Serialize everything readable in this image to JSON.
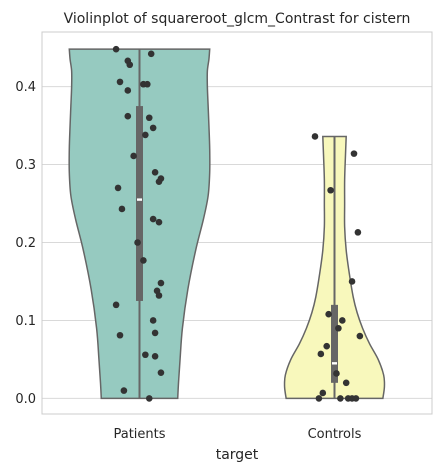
{
  "chart_data": {
    "type": "violin",
    "title": "Violinplot of squareroot_glcm_Contrast for cistern",
    "xlabel": "target",
    "ylabel": "",
    "categories": [
      "Patients",
      "Controls"
    ],
    "ylim": [
      -0.02,
      0.47
    ],
    "yticks": [
      0.0,
      0.1,
      0.2,
      0.3,
      0.4
    ],
    "ytick_labels": [
      "0.0",
      "0.1",
      "0.2",
      "0.3",
      "0.4"
    ],
    "grid": "horizontal",
    "colors": {
      "Patients": "#96cac0",
      "Controls": "#f8f8bc",
      "edge": "#666666",
      "box": "#666666",
      "points": "#333333"
    },
    "series": [
      {
        "category": "Patients",
        "min": 0.0,
        "q1": 0.125,
        "median": 0.255,
        "q3": 0.375,
        "max": 0.448,
        "density_profile": [
          [
            0.0,
            0.49
          ],
          [
            0.02,
            0.5
          ],
          [
            0.05,
            0.52
          ],
          [
            0.09,
            0.55
          ],
          [
            0.14,
            0.62
          ],
          [
            0.19,
            0.72
          ],
          [
            0.23,
            0.82
          ],
          [
            0.26,
            0.88
          ],
          [
            0.29,
            0.9
          ],
          [
            0.32,
            0.9
          ],
          [
            0.35,
            0.89
          ],
          [
            0.375,
            0.88
          ],
          [
            0.4,
            0.87
          ],
          [
            0.42,
            0.87
          ],
          [
            0.435,
            0.89
          ],
          [
            0.448,
            0.9
          ]
        ],
        "points": [
          0.448,
          0.442,
          0.433,
          0.428,
          0.406,
          0.403,
          0.403,
          0.395,
          0.362,
          0.36,
          0.347,
          0.338,
          0.311,
          0.29,
          0.282,
          0.278,
          0.27,
          0.243,
          0.23,
          0.226,
          0.2,
          0.177,
          0.148,
          0.138,
          0.132,
          0.12,
          0.1,
          0.084,
          0.081,
          0.056,
          0.054,
          0.033,
          0.01,
          0.0
        ],
        "jitter": [
          -0.12,
          0.06,
          -0.06,
          -0.05,
          -0.1,
          0.02,
          0.04,
          -0.06,
          -0.06,
          0.05,
          0.07,
          0.03,
          -0.03,
          0.08,
          0.11,
          0.1,
          -0.11,
          -0.09,
          0.07,
          0.1,
          -0.01,
          0.02,
          0.11,
          0.09,
          0.1,
          -0.12,
          0.07,
          0.08,
          -0.1,
          0.03,
          0.08,
          0.11,
          -0.08,
          0.05
        ]
      },
      {
        "category": "Controls",
        "min": 0.0,
        "q1": 0.02,
        "median": 0.045,
        "q3": 0.12,
        "max": 0.336,
        "density_profile": [
          [
            0.0,
            0.62
          ],
          [
            0.015,
            0.64
          ],
          [
            0.03,
            0.63
          ],
          [
            0.05,
            0.56
          ],
          [
            0.07,
            0.45
          ],
          [
            0.09,
            0.36
          ],
          [
            0.11,
            0.29
          ],
          [
            0.13,
            0.24
          ],
          [
            0.16,
            0.19
          ],
          [
            0.19,
            0.15
          ],
          [
            0.22,
            0.13
          ],
          [
            0.25,
            0.13
          ],
          [
            0.28,
            0.13
          ],
          [
            0.31,
            0.14
          ],
          [
            0.336,
            0.15
          ]
        ],
        "points": [
          0.336,
          0.314,
          0.267,
          0.213,
          0.15,
          0.108,
          0.1,
          0.09,
          0.08,
          0.067,
          0.057,
          0.032,
          0.02,
          0.007,
          0.0,
          0.0,
          0.0,
          0.0,
          0.0
        ],
        "jitter": [
          -0.1,
          0.1,
          -0.02,
          0.12,
          0.09,
          -0.03,
          0.04,
          0.02,
          0.13,
          -0.04,
          -0.07,
          0.01,
          0.06,
          -0.06,
          -0.08,
          0.03,
          0.07,
          0.09,
          0.11
        ]
      }
    ]
  }
}
